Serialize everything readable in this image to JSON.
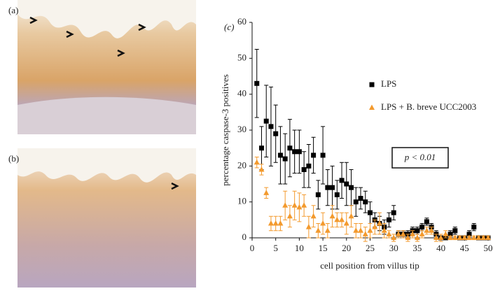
{
  "images": [
    {
      "label": "(a)"
    },
    {
      "label": "(b)"
    }
  ],
  "chart_data": {
    "type": "scatter",
    "panel_label": "(c)",
    "x_label": "cell position from villus tip",
    "y_label": "percentage caspase-3 positives",
    "annotation": "p < 0.01",
    "x": [
      1,
      2,
      3,
      4,
      5,
      6,
      7,
      8,
      9,
      10,
      11,
      12,
      13,
      14,
      15,
      16,
      17,
      18,
      19,
      20,
      21,
      22,
      23,
      24,
      25,
      26,
      27,
      28,
      29,
      30,
      31,
      32,
      33,
      34,
      35,
      36,
      37,
      38,
      39,
      40,
      41,
      42,
      43,
      44,
      45,
      46,
      47,
      48,
      49,
      50
    ],
    "xlim": [
      0,
      50
    ],
    "xticks": [
      0,
      5,
      10,
      15,
      20,
      25,
      30,
      35,
      40,
      45,
      50
    ],
    "ylim": [
      0,
      60
    ],
    "yticks": [
      0,
      10,
      20,
      30,
      40,
      50,
      60
    ],
    "series": [
      {
        "name": "LPS",
        "color": "#000000",
        "marker": "square",
        "values": [
          43,
          25,
          32.5,
          31,
          29,
          23,
          22,
          25,
          24,
          24,
          19,
          20,
          23,
          12,
          23,
          14,
          14,
          12,
          16,
          15,
          14,
          10,
          11,
          10,
          7,
          5,
          4,
          3,
          5,
          7,
          1,
          1,
          1,
          2,
          2,
          3,
          4.5,
          3,
          1,
          0,
          0,
          1,
          2,
          0,
          0,
          1,
          3,
          0,
          0,
          0
        ],
        "errors": [
          9.5,
          6,
          10,
          11,
          8,
          8,
          7,
          8,
          6,
          6,
          5,
          6,
          5,
          4,
          8,
          5,
          6,
          4,
          5,
          6,
          5,
          4,
          3,
          3,
          3,
          2,
          2,
          2,
          2,
          2,
          1,
          1,
          1,
          1,
          1,
          1,
          1,
          1,
          1,
          0.5,
          0.5,
          1,
          1,
          0.5,
          0.5,
          1,
          1,
          0.5,
          0.5,
          0.5
        ]
      },
      {
        "name": "LPS + B. breve UCC2003",
        "color": "#f39a2e",
        "marker": "triangle",
        "values": [
          21,
          19,
          12.5,
          4,
          4,
          4,
          9,
          6,
          9,
          8.5,
          9,
          3,
          6,
          2,
          4,
          2,
          6,
          5,
          5,
          4,
          6,
          2,
          2,
          1,
          2,
          3,
          4,
          2,
          1,
          0,
          1,
          1,
          0,
          1,
          0,
          1,
          2,
          2,
          0,
          0,
          1,
          0,
          0,
          0,
          0,
          0,
          0,
          0,
          0,
          0
        ],
        "errors": [
          1.5,
          1.5,
          1.5,
          2,
          2,
          2,
          4,
          3,
          4,
          4,
          3,
          3,
          3,
          2,
          3,
          2,
          3,
          2,
          2,
          3,
          3,
          2,
          2,
          2,
          2,
          2,
          3,
          2,
          1,
          1,
          1,
          1,
          1,
          1,
          1,
          1,
          1,
          1,
          1,
          1,
          1,
          0.5,
          0.5,
          0.5,
          0.5,
          0.5,
          0.5,
          0.5,
          0.5,
          0.5
        ]
      }
    ]
  }
}
